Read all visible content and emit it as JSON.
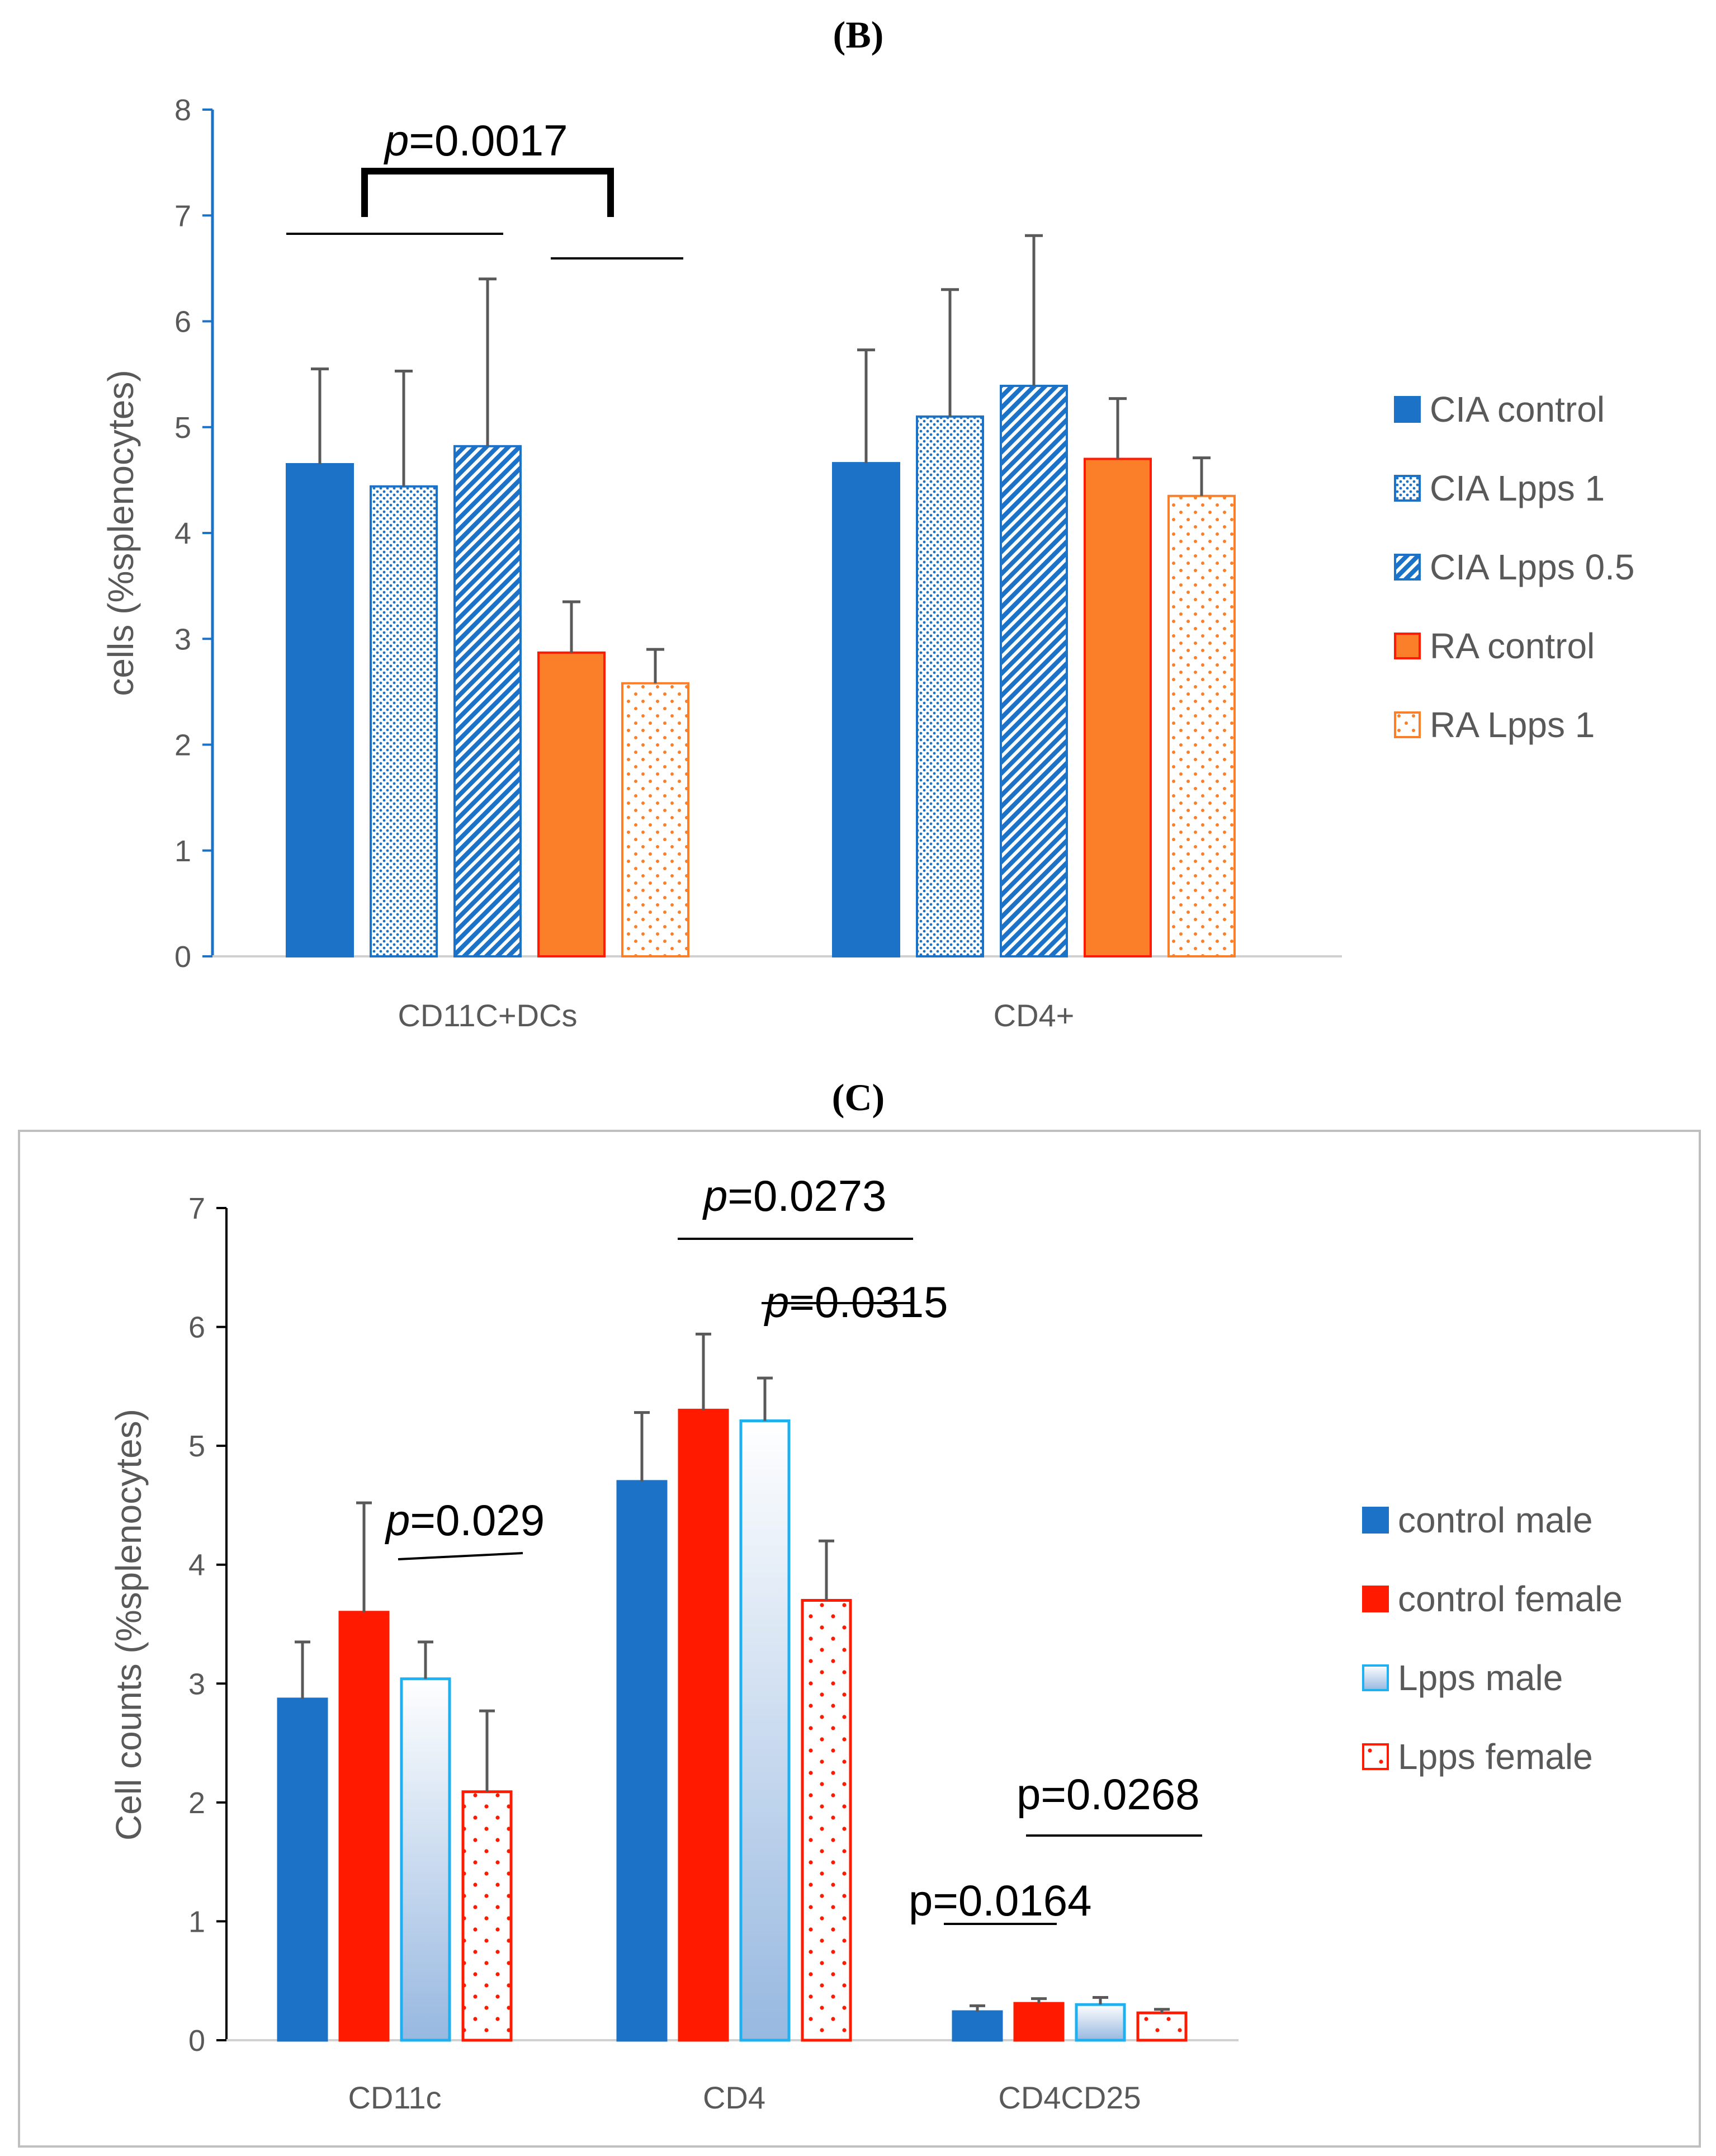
{
  "figure": {
    "panel_b_label": "(B)",
    "panel_c_label": "(C)"
  },
  "chart_data": [
    {
      "panel": "B",
      "type": "bar",
      "title": "(B)",
      "xlabel": "",
      "ylabel": "cells (%splenocytes)",
      "ylim": [
        0,
        8
      ],
      "yticks": [
        "0",
        "1",
        "2",
        "3",
        "4",
        "5",
        "6",
        "7",
        "8"
      ],
      "categories": [
        "CD11C+DCs",
        "CD4+"
      ],
      "legend_position": "right",
      "series": [
        {
          "name": "CIA control",
          "values": [
            4.65,
            4.66
          ],
          "errors": [
            0.9,
            1.07
          ],
          "fill": "#1b72c7",
          "stroke": "#1b72c7",
          "pattern": "solid"
        },
        {
          "name": "CIA Lpps 1",
          "values": [
            4.44,
            5.1
          ],
          "errors": [
            1.09,
            1.2
          ],
          "fill": "#1b72c7",
          "stroke": "#1b72c7",
          "pattern": "small-dots"
        },
        {
          "name": "CIA Lpps 0.5",
          "values": [
            4.82,
            5.39
          ],
          "errors": [
            1.58,
            1.42
          ],
          "fill": "#1b72c7",
          "stroke": "#1b72c7",
          "pattern": "diagonal"
        },
        {
          "name": "RA control",
          "values": [
            2.87,
            4.7
          ],
          "errors": [
            0.48,
            0.57
          ],
          "fill": "#fb7f29",
          "stroke": "#ff1a00",
          "pattern": "solid"
        },
        {
          "name": "RA Lpps 1",
          "values": [
            2.58,
            4.35
          ],
          "errors": [
            0.32,
            0.36
          ],
          "fill": "#fb7f29",
          "stroke": "#fb7f29",
          "pattern": "dots"
        }
      ],
      "annotations": [
        {
          "prefix": "p",
          "text": "=0.0017"
        }
      ]
    },
    {
      "panel": "C",
      "type": "bar",
      "title": "(C)",
      "xlabel": "",
      "ylabel": "Cell counts (%splenocytes)",
      "ylim": [
        0,
        7
      ],
      "yticks": [
        "0",
        "1",
        "2",
        "3",
        "4",
        "5",
        "6",
        "7"
      ],
      "categories": [
        "CD11c",
        "CD4",
        "CD4CD25"
      ],
      "legend_position": "right",
      "series": [
        {
          "name": "control male",
          "values": [
            2.87,
            4.7,
            0.24
          ],
          "errors": [
            0.48,
            0.58,
            0.05
          ],
          "fill": "#1b72c7",
          "stroke": "#1b72c7",
          "pattern": "solid"
        },
        {
          "name": "control female",
          "values": [
            3.6,
            5.3,
            0.31
          ],
          "errors": [
            0.92,
            0.64,
            0.04
          ],
          "fill": "#ff1a00",
          "stroke": "#ff1a00",
          "pattern": "solid"
        },
        {
          "name": "Lpps male",
          "values": [
            3.04,
            5.21,
            0.3
          ],
          "errors": [
            0.31,
            0.36,
            0.06
          ],
          "fill": "#a6c4e6",
          "stroke": "#1eb0ef",
          "pattern": "gradient"
        },
        {
          "name": "Lpps female",
          "values": [
            2.09,
            3.7,
            0.23
          ],
          "errors": [
            0.68,
            0.5,
            0.03
          ],
          "fill": "#ffffff",
          "stroke": "#ff1a00",
          "pattern": "red-dots"
        }
      ],
      "annotations": [
        {
          "prefix": "p",
          "text": "=0.0273"
        },
        {
          "prefix": "p",
          "text": "=0.0315"
        },
        {
          "prefix": "p",
          "text": "=0.029"
        },
        {
          "prefix": "",
          "text": "p=0.0268"
        },
        {
          "prefix": "",
          "text": "p=0.0164"
        }
      ]
    }
  ]
}
